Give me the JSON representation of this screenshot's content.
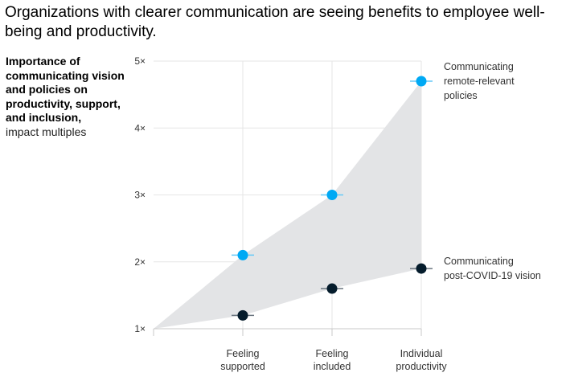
{
  "chart_data": {
    "type": "scatter",
    "title": "Organizations with clearer communication are seeing benefits to employee well-being and productivity.",
    "ylabel": "Importance of communicating vision and policies on productivity, support, and inclusion,",
    "ylabel_unit": "impact multiples",
    "xlabel": "",
    "categories": [
      [
        "Feeling",
        "supported"
      ],
      [
        "Feeling",
        "included"
      ],
      [
        "Individual",
        "productivity"
      ]
    ],
    "ylim": [
      1,
      5
    ],
    "yticks": [
      1,
      2,
      3,
      4,
      5
    ],
    "ytick_labels": [
      "1×",
      "2×",
      "3×",
      "4×",
      "5×"
    ],
    "grid": true,
    "area_between_series": true,
    "area_origin": 1,
    "series": [
      {
        "name": [
          "Communicating",
          "remote-relevant",
          "policies"
        ],
        "values": [
          2.1,
          3.0,
          4.7
        ],
        "color": "#00a9f4"
      },
      {
        "name": [
          "Communicating",
          "post-COVID-19 vision"
        ],
        "values": [
          1.2,
          1.6,
          1.9
        ],
        "color": "#051c2c"
      }
    ],
    "colors": {
      "area": "#e3e4e6",
      "grid": "#e6e6e6",
      "axis": "#c8c8c8",
      "error_bar_light": "#66c9f7",
      "error_bar_dark": "#6b7680"
    }
  }
}
